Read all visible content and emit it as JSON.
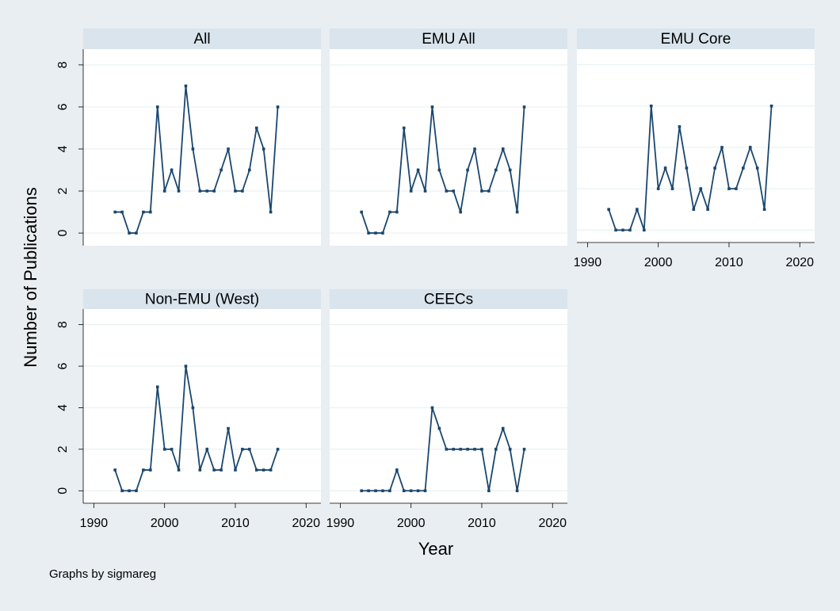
{
  "ylabel": "Number of Publications",
  "xlabel": "Year",
  "note": "Graphs by sigmareg",
  "chart_data": [
    {
      "type": "line",
      "title": "All",
      "color": "#1a476f",
      "grid": true,
      "ytick_labels": true,
      "xlim": [
        1988.5,
        2022.1
      ],
      "ylim": [
        -0.6,
        8.75
      ],
      "yticks": [
        0,
        2,
        4,
        6,
        8
      ],
      "x": [
        1993,
        1994,
        1995,
        1996,
        1997,
        1998,
        1999,
        2000,
        2001,
        2002,
        2003,
        2004,
        2005,
        2006,
        2007,
        2008,
        2009,
        2010,
        2011,
        2012,
        2013,
        2014,
        2015,
        2016
      ],
      "values": [
        1,
        1,
        0,
        0,
        1,
        1,
        6,
        2,
        3,
        2,
        7,
        4,
        2,
        2,
        2,
        3,
        4,
        2,
        2,
        3,
        5,
        4,
        1,
        6
      ]
    },
    {
      "type": "line",
      "title": "EMU All",
      "color": "#1a476f",
      "grid": true,
      "ytick_labels": false,
      "xlim": [
        1988.5,
        2022.1
      ],
      "ylim": [
        -0.6,
        8.75
      ],
      "yticks": [
        0,
        2,
        4,
        6,
        8
      ],
      "x": [
        1993,
        1994,
        1995,
        1996,
        1997,
        1998,
        1999,
        2000,
        2001,
        2002,
        2003,
        2004,
        2005,
        2006,
        2007,
        2008,
        2009,
        2010,
        2011,
        2012,
        2013,
        2014,
        2015,
        2016
      ],
      "values": [
        1,
        0,
        0,
        0,
        1,
        1,
        5,
        2,
        3,
        2,
        6,
        3,
        2,
        2,
        1,
        3,
        4,
        2,
        2,
        3,
        4,
        3,
        1,
        6
      ]
    },
    {
      "type": "line",
      "title": "EMU Core",
      "color": "#1a476f",
      "grid": true,
      "ytick_labels": false,
      "xlim": [
        1988.5,
        2022.1
      ],
      "ylim": [
        -0.6,
        8.75
      ],
      "yticks": [
        0,
        2,
        4,
        6,
        8
      ],
      "xticks": [
        1990,
        2000,
        2010,
        2020
      ],
      "x": [
        1993,
        1994,
        1995,
        1996,
        1997,
        1998,
        1999,
        2000,
        2001,
        2002,
        2003,
        2004,
        2005,
        2006,
        2007,
        2008,
        2009,
        2010,
        2011,
        2012,
        2013,
        2014,
        2015,
        2016
      ],
      "values": [
        1,
        0,
        0,
        0,
        1,
        0,
        6,
        2,
        3,
        2,
        5,
        3,
        1,
        2,
        1,
        3,
        4,
        2,
        2,
        3,
        4,
        3,
        1,
        6
      ]
    },
    {
      "type": "line",
      "title": "Non-EMU (West)",
      "color": "#1a476f",
      "grid": true,
      "ytick_labels": true,
      "xlim": [
        1988.5,
        2022.1
      ],
      "ylim": [
        -0.6,
        8.75
      ],
      "yticks": [
        0,
        2,
        4,
        6,
        8
      ],
      "xticks": [
        1990,
        2000,
        2010,
        2020
      ],
      "x": [
        1993,
        1994,
        1995,
        1996,
        1997,
        1998,
        1999,
        2000,
        2001,
        2002,
        2003,
        2004,
        2005,
        2006,
        2007,
        2008,
        2009,
        2010,
        2011,
        2012,
        2013,
        2014,
        2015,
        2016
      ],
      "values": [
        1,
        0,
        0,
        0,
        1,
        1,
        5,
        2,
        2,
        1,
        6,
        4,
        1,
        2,
        1,
        1,
        3,
        1,
        2,
        2,
        1,
        1,
        1,
        2
      ]
    },
    {
      "type": "line",
      "title": "CEECs",
      "color": "#1a476f",
      "grid": true,
      "ytick_labels": false,
      "xlim": [
        1988.5,
        2022.1
      ],
      "ylim": [
        -0.6,
        8.75
      ],
      "yticks": [
        0,
        2,
        4,
        6,
        8
      ],
      "xticks": [
        1990,
        2000,
        2010,
        2020
      ],
      "x": [
        1993,
        1994,
        1995,
        1996,
        1997,
        1998,
        1999,
        2000,
        2001,
        2002,
        2003,
        2004,
        2005,
        2006,
        2007,
        2008,
        2009,
        2010,
        2011,
        2012,
        2013,
        2014,
        2015,
        2016
      ],
      "values": [
        0,
        0,
        0,
        0,
        0,
        1,
        0,
        0,
        0,
        0,
        4,
        3,
        2,
        2,
        2,
        2,
        2,
        2,
        0,
        2,
        3,
        2,
        0,
        2
      ]
    }
  ]
}
